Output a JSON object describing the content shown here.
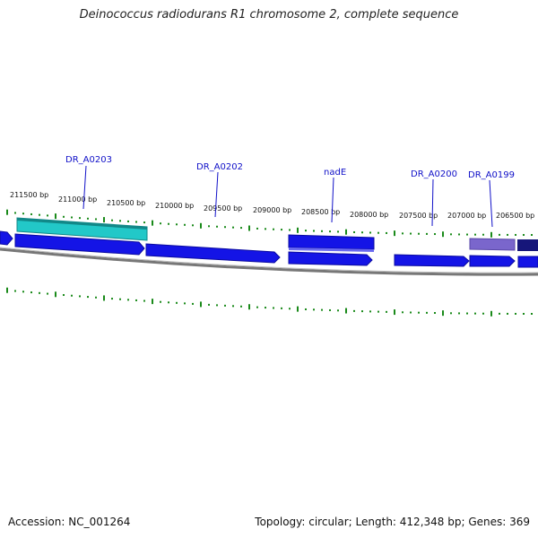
{
  "title": "Deinococcus radiodurans R1 chromosome 2, complete sequence",
  "footer": {
    "accession": "Accession: NC_001264",
    "summary": "Topology: circular; Length: 412,348 bp; Genes: 369"
  },
  "ticks": [
    "211500 bp",
    "211000 bp",
    "210500 bp",
    "210000 bp",
    "209500 bp",
    "209000 bp",
    "208500 bp",
    "208000 bp",
    "207500 bp",
    "207000 bp",
    "206500 bp"
  ],
  "gene_labels": [
    "DR_A0203",
    "DR_A0202",
    "nadE",
    "DR_A0200",
    "DR_A0199"
  ],
  "colors": {
    "backbone": "#888888",
    "cds": "#1414e6",
    "cds_light": "#2a2aff",
    "highlight": "#22c8c8",
    "purple": "#7a66cc",
    "navy": "#16167a",
    "tick": "#1a8a1a",
    "label": "#1010c8"
  }
}
